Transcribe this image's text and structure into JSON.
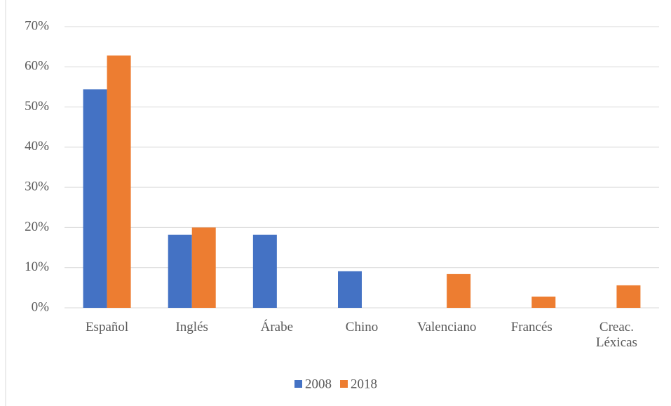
{
  "chart_data": {
    "type": "bar",
    "categories": [
      "Español",
      "Inglés",
      "Árabe",
      "Chino",
      "Valenciano",
      "Francés",
      "Creac. Léxicas"
    ],
    "series": [
      {
        "name": "2008",
        "color": "#4472c4",
        "values": [
          54.4,
          18.2,
          18.2,
          9.1,
          null,
          null,
          null
        ]
      },
      {
        "name": "2018",
        "color": "#ed7d31",
        "values": [
          62.8,
          20,
          null,
          null,
          8.4,
          2.8,
          5.6
        ]
      }
    ],
    "ylim": [
      0,
      70
    ],
    "yticks": [
      {
        "value": 0,
        "label": "0%"
      },
      {
        "value": 10,
        "label": "10%"
      },
      {
        "value": 20,
        "label": "20%"
      },
      {
        "value": 30,
        "label": "30%"
      },
      {
        "value": 40,
        "label": "40%"
      },
      {
        "value": 50,
        "label": "50%"
      },
      {
        "value": 60,
        "label": "60%"
      },
      {
        "value": 70,
        "label": "70%"
      }
    ],
    "grid": true,
    "legend": "bottom"
  }
}
